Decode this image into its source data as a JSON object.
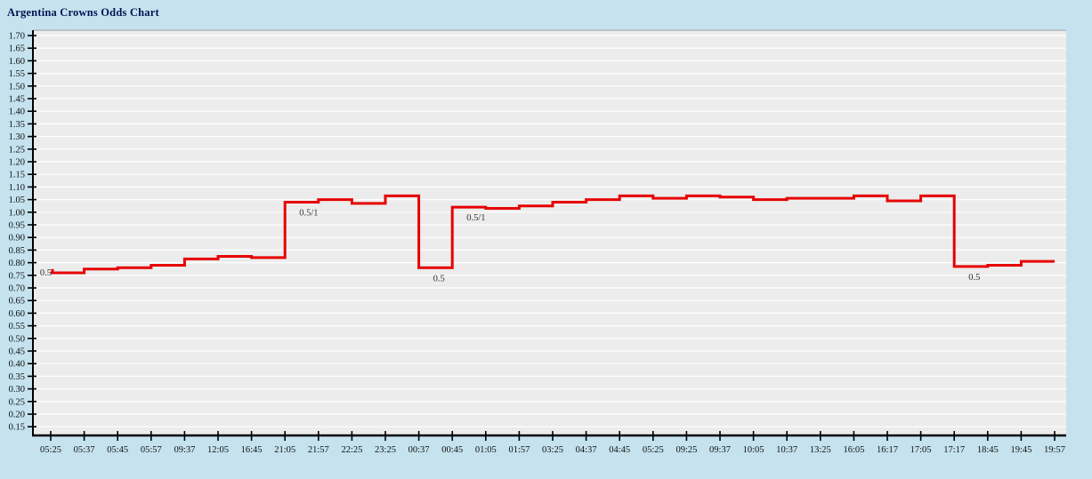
{
  "header": {
    "title": "Argentina Crowns Odds Chart"
  },
  "colors": {
    "background": "#c5e2ee",
    "plot_background": "#ececec",
    "gridline": "#ffffff",
    "plot_top_border": "#bcc3c8",
    "line": "#e60000",
    "axis": "#000000",
    "title_text": "#001554",
    "tick_text": "#111111",
    "annotation_text": "#333333"
  },
  "chart_data": {
    "type": "line",
    "step": true,
    "title": "Argentina Crowns Odds Chart",
    "xlabel": "",
    "ylabel": "",
    "ylim": [
      0.15,
      1.7
    ],
    "y_tick_step": 0.05,
    "grid": true,
    "legend": "none",
    "x_labels": [
      "05:25",
      "05:37",
      "05:45",
      "05:57",
      "09:37",
      "12:05",
      "16:45",
      "21:05",
      "21:57",
      "22:25",
      "23:25",
      "00:37",
      "00:45",
      "01:05",
      "01:57",
      "03:25",
      "04:37",
      "04:45",
      "05:25",
      "09:25",
      "09:37",
      "10:05",
      "10:37",
      "13:25",
      "16:05",
      "16:17",
      "17:05",
      "17:17",
      "18:45",
      "19:45",
      "19:57"
    ],
    "series": [
      {
        "name": "odds",
        "values": [
          0.76,
          0.775,
          0.78,
          0.79,
          0.815,
          0.825,
          0.82,
          1.04,
          1.05,
          1.035,
          1.065,
          0.78,
          1.02,
          1.015,
          1.025,
          1.04,
          1.05,
          1.065,
          1.055,
          1.065,
          1.06,
          1.05,
          1.055,
          1.055,
          1.065,
          1.045,
          1.065,
          0.785,
          0.79,
          0.805,
          0.805
        ]
      }
    ],
    "annotations": [
      {
        "index": 0,
        "text": "0.5",
        "side": "start"
      },
      {
        "index": 7,
        "text": "0.5/1",
        "side": "below"
      },
      {
        "index": 11,
        "text": "0.5",
        "side": "below"
      },
      {
        "index": 12,
        "text": "0.5/1",
        "side": "below"
      },
      {
        "index": 27,
        "text": "0.5",
        "side": "below"
      }
    ]
  }
}
